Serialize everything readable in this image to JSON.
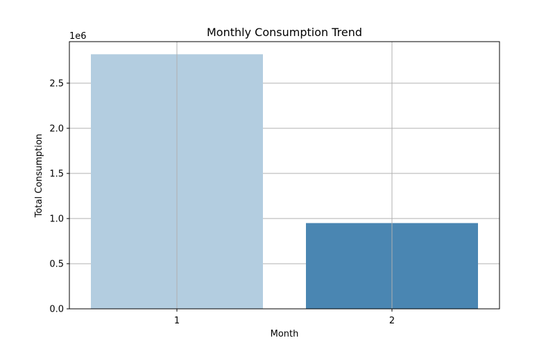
{
  "chart_data": {
    "type": "bar",
    "title": "Monthly Consumption Trend",
    "xlabel": "Month",
    "ylabel": "Total Consumption",
    "y_offset_text": "1e6",
    "y_scale": 1000000,
    "categories": [
      "1",
      "2"
    ],
    "values": [
      2820000,
      950000
    ],
    "bar_colors": [
      "#b3cde0",
      "#4a86b2"
    ],
    "ylim": [
      0,
      2960000
    ],
    "yticks": [
      0,
      500000,
      1000000,
      1500000,
      2000000,
      2500000
    ],
    "ytick_labels": [
      "0.0",
      "0.5",
      "1.0",
      "1.5",
      "2.0",
      "2.5"
    ],
    "grid": true,
    "grid_color": "#b0b0b0",
    "legend": false
  }
}
